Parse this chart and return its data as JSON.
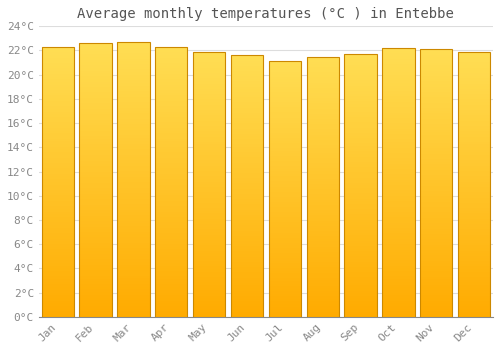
{
  "title": "Average monthly temperatures (°C ) in Entebbe",
  "months": [
    "Jan",
    "Feb",
    "Mar",
    "Apr",
    "May",
    "Jun",
    "Jul",
    "Aug",
    "Sep",
    "Oct",
    "Nov",
    "Dec"
  ],
  "values": [
    22.3,
    22.6,
    22.7,
    22.3,
    21.9,
    21.6,
    21.1,
    21.5,
    21.7,
    22.2,
    22.1,
    21.9
  ],
  "bar_color_top": "#FFCC44",
  "bar_color_bottom": "#FFAA00",
  "bar_edge_color": "#CC8800",
  "background_color": "#FFFFFF",
  "grid_color": "#DDDDDD",
  "ylim": [
    0,
    24
  ],
  "ytick_step": 2,
  "title_fontsize": 10,
  "tick_fontsize": 8,
  "tick_color": "#888888",
  "title_color": "#555555",
  "bar_width": 0.85
}
